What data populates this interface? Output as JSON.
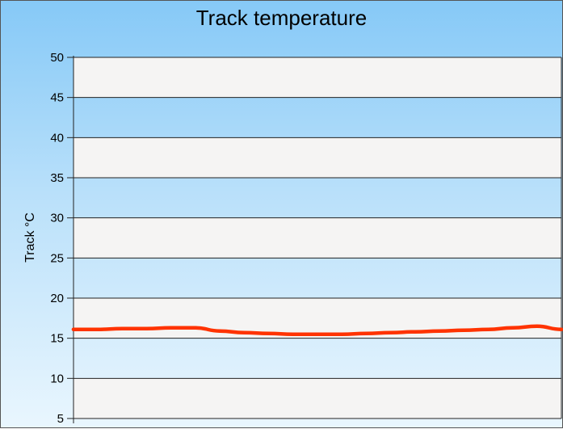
{
  "chart_data": {
    "type": "line",
    "title": "Track temperature",
    "xlabel": "",
    "ylabel": "Track °C",
    "ylim": [
      5,
      50
    ],
    "yticks": [
      5,
      10,
      15,
      20,
      25,
      30,
      35,
      40,
      45,
      50
    ],
    "grid": true,
    "legend": "none",
    "series": [
      {
        "color": "#ff3300",
        "x": [
          0,
          5,
          10,
          15,
          20,
          25,
          30,
          35,
          40,
          45,
          50,
          55,
          60,
          65,
          70,
          75,
          80,
          85,
          90,
          95,
          100
        ],
        "values": [
          16.1,
          16.1,
          16.2,
          16.2,
          16.3,
          16.3,
          15.9,
          15.7,
          15.6,
          15.5,
          15.5,
          15.5,
          15.6,
          15.7,
          15.8,
          15.9,
          16.0,
          16.1,
          16.3,
          16.5,
          16.1
        ]
      }
    ]
  }
}
